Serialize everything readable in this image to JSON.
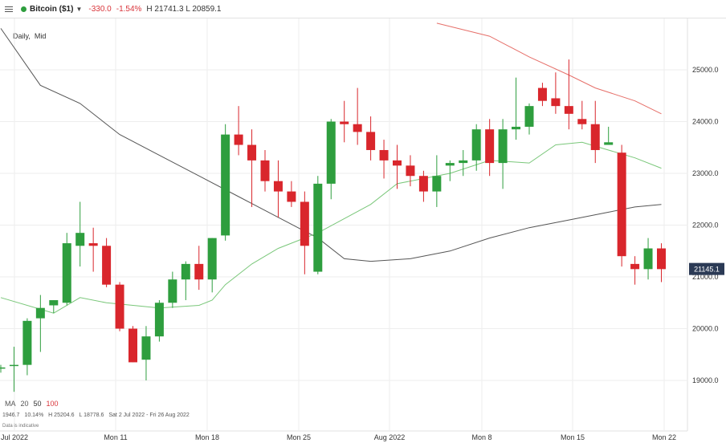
{
  "header": {
    "symbol": "Bitcoin ($1)",
    "symbol_dot_color": "#2e9e3e",
    "menu_icon": "hamburger-menu-icon",
    "caret_icon": "chevron-down-icon",
    "change": "-330.0",
    "change_pct": "-1.54%",
    "high_low": "H 21741.3  L 20859.1",
    "change_color": "#d9343a"
  },
  "interval": {
    "timeframe": "Daily",
    "sep": ",",
    "type": "Mid"
  },
  "ma_legend": {
    "label": "MA",
    "p1": "20",
    "p2": "50",
    "p3": "100"
  },
  "stats": {
    "a": "1946.7",
    "b": "10.14%",
    "c": "H 25204.6",
    "d": "L 18778.6",
    "range": "Sat 2 Jul 2022 - Fri 26 Aug 2022"
  },
  "footer_note": "Data is indicative",
  "colors": {
    "up": "#2e9e3e",
    "down": "#d9262c",
    "ma20": "#7ac77a",
    "ma50": "#555555",
    "ma100": "#e6706a",
    "price_badge": "#2b3a55"
  },
  "chart_data": {
    "type": "candlestick",
    "y_ticks": [
      "19000.0",
      "20000.0",
      "21000.0",
      "22000.0",
      "23000.0",
      "24000.0",
      "25000.0"
    ],
    "x_labels": [
      "Jul 2022",
      "Mon 11",
      "Mon 18",
      "Mon 25",
      "Aug 2022",
      "Mon 8",
      "Mon 15",
      "Mon 22"
    ],
    "ylim": [
      18230,
      25930
    ],
    "last_price": "21145.1",
    "candles": [
      [
        19250,
        19300,
        19150,
        19250
      ],
      [
        19300,
        19650,
        18780,
        19300
      ],
      [
        19300,
        20200,
        19100,
        20150
      ],
      [
        20200,
        20650,
        19550,
        20400
      ],
      [
        20450,
        20550,
        20300,
        20550
      ],
      [
        20500,
        21850,
        20450,
        21650
      ],
      [
        21600,
        22450,
        21200,
        21850
      ],
      [
        21650,
        21950,
        21100,
        21600
      ],
      [
        21600,
        21750,
        20800,
        20850
      ],
      [
        20850,
        20900,
        19950,
        20000
      ],
      [
        20000,
        20050,
        19350,
        19350
      ],
      [
        19400,
        20050,
        19000,
        19850
      ],
      [
        19850,
        20550,
        19750,
        20500
      ],
      [
        20500,
        21100,
        20400,
        20950
      ],
      [
        20950,
        21300,
        20550,
        21250
      ],
      [
        21250,
        21600,
        20750,
        20950
      ],
      [
        20950,
        21750,
        20700,
        21750
      ],
      [
        21800,
        23950,
        21700,
        23750
      ],
      [
        23750,
        24300,
        23350,
        23550
      ],
      [
        23550,
        23850,
        22350,
        23250
      ],
      [
        23250,
        23450,
        22650,
        22850
      ],
      [
        22850,
        23250,
        22150,
        22650
      ],
      [
        22650,
        22850,
        22350,
        22450
      ],
      [
        22450,
        22650,
        21050,
        21600
      ],
      [
        21100,
        22950,
        21050,
        22800
      ],
      [
        22800,
        24050,
        22500,
        24000
      ],
      [
        24000,
        24400,
        23600,
        23950
      ],
      [
        23950,
        24650,
        23550,
        23800
      ],
      [
        23800,
        24100,
        23250,
        23450
      ],
      [
        23450,
        23650,
        22900,
        23250
      ],
      [
        23250,
        23550,
        22700,
        23150
      ],
      [
        23150,
        23350,
        22750,
        22950
      ],
      [
        22950,
        23050,
        22450,
        22650
      ],
      [
        22650,
        23350,
        22350,
        22950
      ],
      [
        23150,
        23250,
        22850,
        23200
      ],
      [
        23200,
        23450,
        22950,
        23250
      ],
      [
        23250,
        23950,
        23050,
        23850
      ],
      [
        23850,
        24050,
        22950,
        23200
      ],
      [
        23200,
        24050,
        22700,
        23850
      ],
      [
        23850,
        24850,
        23650,
        23900
      ],
      [
        23900,
        24350,
        23750,
        24300
      ],
      [
        24650,
        24750,
        24300,
        24400
      ],
      [
        24450,
        24950,
        24150,
        24300
      ],
      [
        24300,
        25200,
        23850,
        24150
      ],
      [
        24050,
        24400,
        23850,
        23950
      ],
      [
        23950,
        24400,
        23200,
        23450
      ],
      [
        23550,
        23900,
        23550,
        23600
      ],
      [
        23400,
        23550,
        21200,
        21400
      ],
      [
        21250,
        21400,
        20850,
        21150
      ],
      [
        21150,
        21750,
        20950,
        21550
      ],
      [
        21550,
        21650,
        20900,
        21150
      ]
    ],
    "ma20": [
      [
        0,
        20600
      ],
      [
        4,
        20300
      ],
      [
        6,
        20600
      ],
      [
        8,
        20500
      ],
      [
        12,
        20400
      ],
      [
        15,
        20450
      ],
      [
        16,
        20550
      ],
      [
        17,
        20850
      ],
      [
        19,
        21250
      ],
      [
        21,
        21550
      ],
      [
        24,
        21850
      ],
      [
        28,
        22400
      ],
      [
        30,
        22800
      ],
      [
        34,
        23000
      ],
      [
        37,
        23250
      ],
      [
        40,
        23200
      ],
      [
        42,
        23550
      ],
      [
        44,
        23600
      ],
      [
        46,
        23450
      ],
      [
        48,
        23300
      ],
      [
        50,
        23100
      ]
    ],
    "ma50": [
      [
        0,
        25800
      ],
      [
        3,
        24700
      ],
      [
        6,
        24350
      ],
      [
        9,
        23750
      ],
      [
        12,
        23350
      ],
      [
        15,
        22950
      ],
      [
        18,
        22550
      ],
      [
        21,
        22150
      ],
      [
        24,
        21750
      ],
      [
        26,
        21350
      ],
      [
        28,
        21300
      ],
      [
        31,
        21350
      ],
      [
        34,
        21500
      ],
      [
        37,
        21750
      ],
      [
        40,
        21950
      ],
      [
        43,
        22100
      ],
      [
        46,
        22250
      ],
      [
        48,
        22350
      ],
      [
        50,
        22400
      ]
    ],
    "ma100": [
      [
        33,
        25900
      ],
      [
        37,
        25650
      ],
      [
        40,
        25250
      ],
      [
        43,
        24900
      ],
      [
        45,
        24650
      ],
      [
        48,
        24400
      ],
      [
        50,
        24150
      ]
    ]
  }
}
